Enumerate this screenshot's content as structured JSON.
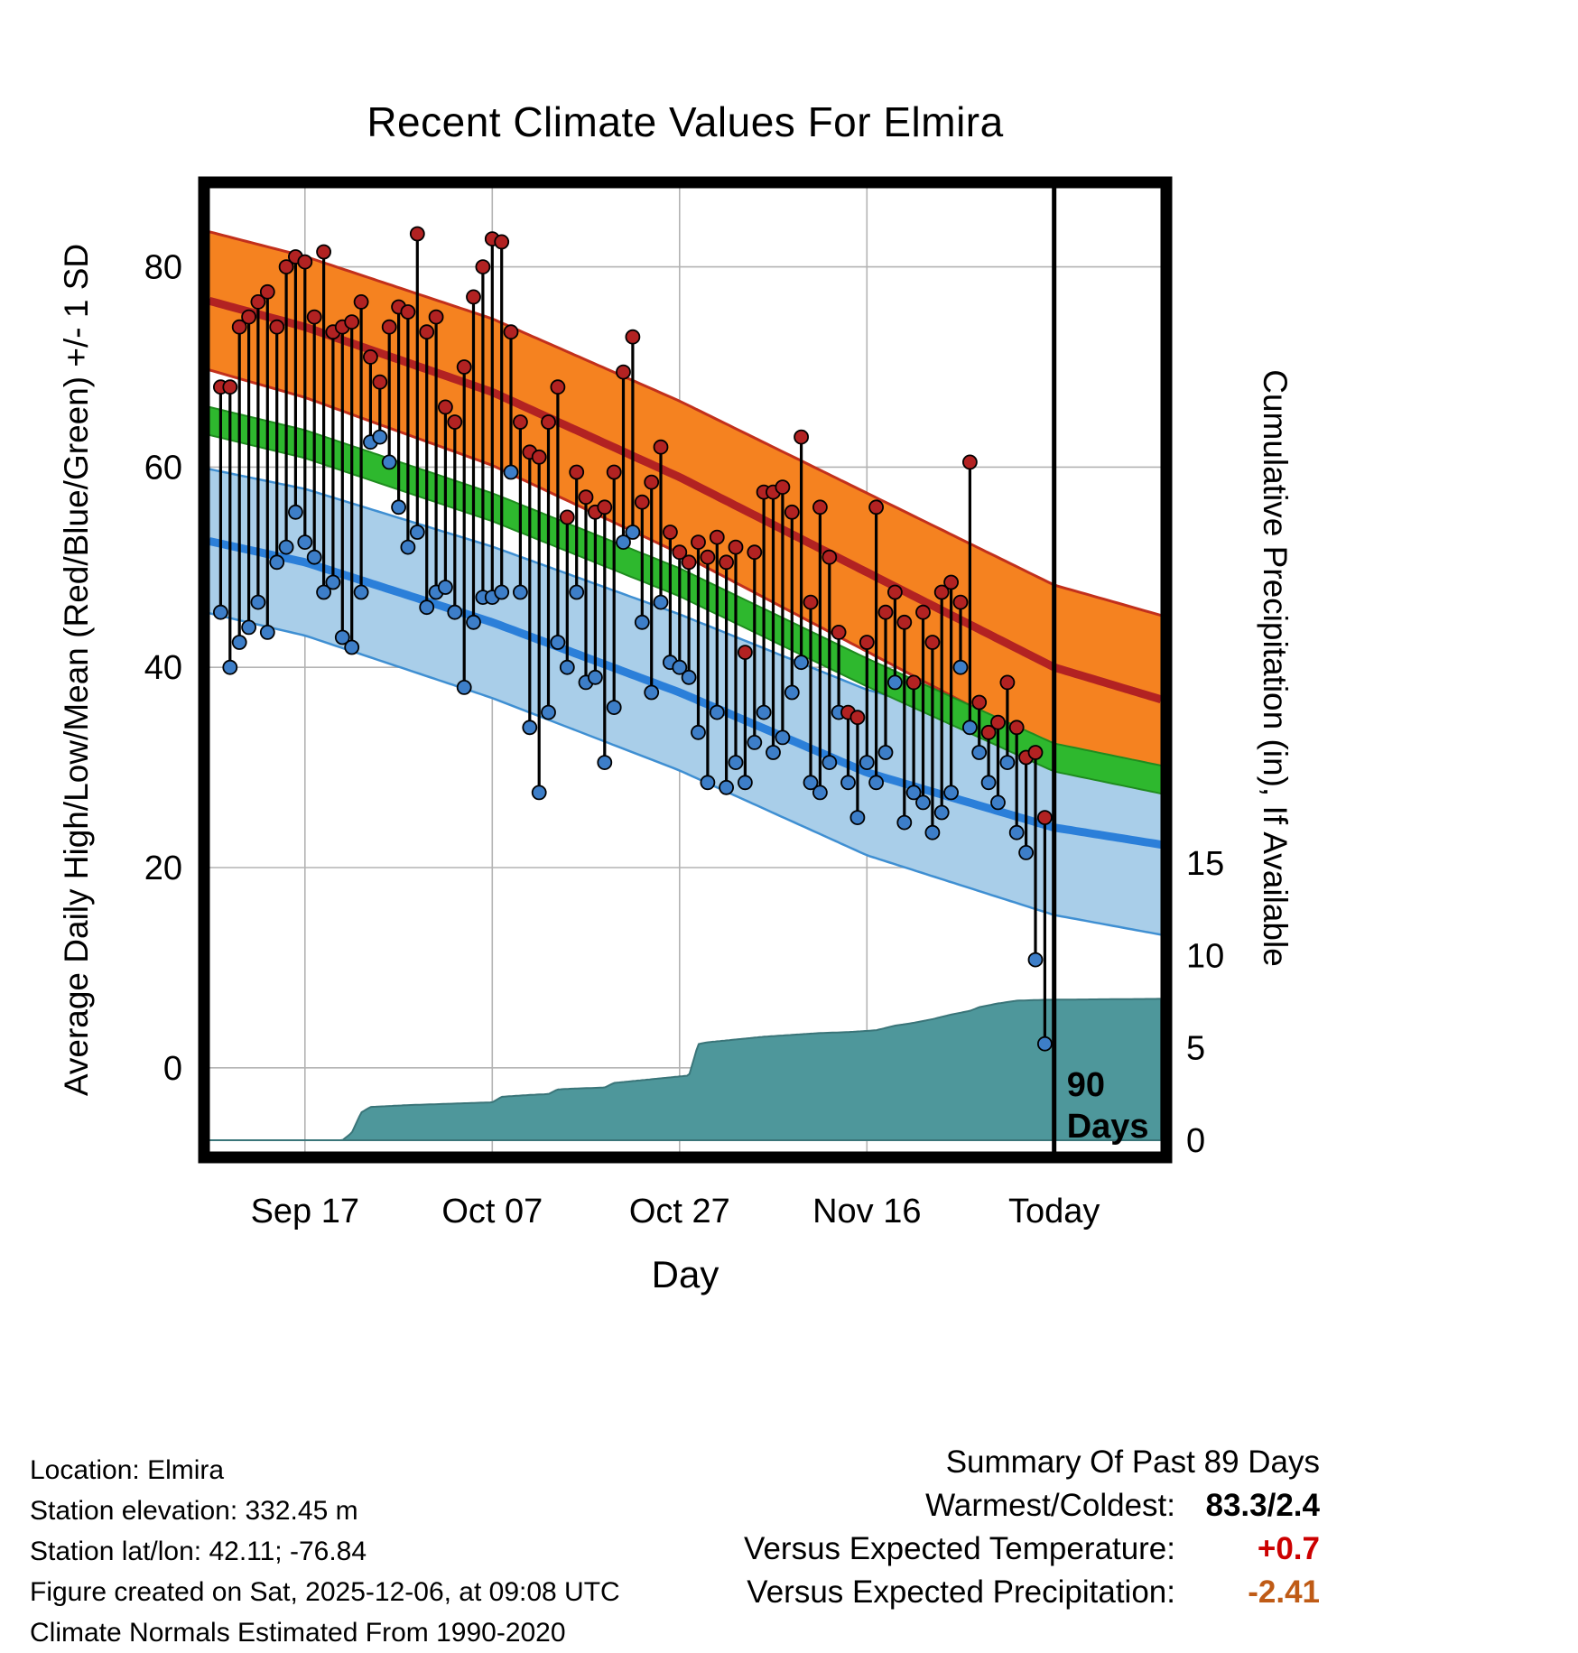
{
  "title": "Recent Climate Values For Elmira",
  "colors": {
    "high_band": "#F58220",
    "high_band_edge": "#C2301C",
    "high_line": "#B22222",
    "mid_band": "#2EB82E",
    "mid_band_edge": "#1F8C1F",
    "low_band": "#A9CEE9",
    "low_band_edge": "#3F8FD2",
    "low_line": "#2B7FD9",
    "high_dot": "#B22222",
    "low_dot": "#3D7EC8",
    "stem": "#000000",
    "precip_fill": "#4E979B",
    "precip_edge": "#3A7579",
    "grid": "#b3b3b3",
    "frame": "#000000",
    "today_line": "#000000"
  },
  "chart_data": {
    "type": "line",
    "subtype": "daily high/low stems with climate normal bands and cumulative precipitation area",
    "title": "Recent Climate Values For Elmira",
    "xlabel": "Day",
    "ylabel_left": "Average Daily High/Low/Mean (Red/Blue/Green) +/- 1 SD",
    "ylabel_right": "Cumulative Precipitation (in), If Available",
    "temp_axis": {
      "ticks": [
        0,
        20,
        40,
        60,
        80
      ],
      "range": [
        -8.4,
        87.9
      ]
    },
    "precip_axis": {
      "ticks": [
        0,
        5,
        10,
        15
      ],
      "range": [
        0,
        15
      ]
    },
    "x_ticks": [
      {
        "day": 9,
        "label": "Sep 17"
      },
      {
        "day": 29,
        "label": "Oct 07"
      },
      {
        "day": 49,
        "label": "Oct 27"
      },
      {
        "day": 69,
        "label": "Nov 16"
      },
      {
        "day": 89,
        "label": "Today"
      }
    ],
    "today_line_day": 89,
    "today_label_lines": [
      "90",
      "Days"
    ],
    "normals": {
      "high_mean_anchors": [
        [
          -1.2,
          76.6
        ],
        [
          9,
          74
        ],
        [
          29,
          67.5
        ],
        [
          49,
          59
        ],
        [
          69,
          49.5
        ],
        [
          89,
          40
        ],
        [
          100.4,
          36.8
        ]
      ],
      "high_sd_anchors": [
        [
          -1.2,
          6.9
        ],
        [
          49,
          7.6
        ],
        [
          100.4,
          8.4
        ]
      ],
      "mid_mean_anchors": [
        [
          -1.2,
          64.6
        ],
        [
          9,
          62.3
        ],
        [
          29,
          56
        ],
        [
          49,
          48.5
        ],
        [
          69,
          39.5
        ],
        [
          89,
          31
        ],
        [
          100.4,
          28.8
        ]
      ],
      "mid_sd_anchors": [
        [
          -1.2,
          1.4
        ],
        [
          100.4,
          1.4
        ]
      ],
      "low_mean_anchors": [
        [
          -1.2,
          52.6
        ],
        [
          9,
          50.5
        ],
        [
          29,
          44.5
        ],
        [
          49,
          37.5
        ],
        [
          69,
          29.5
        ],
        [
          89,
          24
        ],
        [
          100.4,
          22.3
        ]
      ],
      "low_sd_anchors": [
        [
          -1.2,
          7.2
        ],
        [
          49,
          7.8
        ],
        [
          100.4,
          9.0
        ]
      ]
    },
    "daily": {
      "start_day": 0,
      "high": [
        68,
        68,
        74,
        75,
        76.5,
        77.5,
        74,
        80,
        81,
        80.5,
        75,
        81.5,
        73.5,
        74,
        74.5,
        76.5,
        71,
        68.5,
        74,
        76,
        75.5,
        83.3,
        73.5,
        75,
        66,
        64.5,
        70,
        77,
        80,
        82.8,
        82.5,
        73.5,
        64.5,
        61.5,
        61,
        64.5,
        68,
        55,
        59.5,
        57,
        55.5,
        56,
        59.5,
        69.5,
        73,
        56.5,
        58.5,
        62,
        53.5,
        51.5,
        50.5,
        52.5,
        51,
        53,
        50.5,
        52,
        41.5,
        51.5,
        57.5,
        57.5,
        58,
        55.5,
        63,
        46.5,
        56,
        51,
        43.5,
        35.5,
        35,
        42.5,
        56,
        45.5,
        47.5,
        44.5,
        38.5,
        45.5,
        42.5,
        47.5,
        48.5,
        46.5,
        60.5,
        36.5,
        33.5,
        34.5,
        38.5,
        34,
        31,
        31.5,
        25
      ],
      "low": [
        45.5,
        40,
        42.5,
        44,
        46.5,
        43.5,
        50.5,
        52,
        55.5,
        52.5,
        51,
        47.5,
        48.5,
        43,
        42,
        47.5,
        62.5,
        63,
        60.5,
        56,
        52,
        53.5,
        46,
        47.5,
        48,
        45.5,
        38,
        44.5,
        47,
        47,
        47.5,
        59.5,
        47.5,
        34,
        27.5,
        35.5,
        42.5,
        40,
        47.5,
        38.5,
        39,
        30.5,
        36,
        52.5,
        53.5,
        44.5,
        37.5,
        46.5,
        40.5,
        40,
        39,
        33.5,
        28.5,
        35.5,
        28,
        30.5,
        28.5,
        32.5,
        35.5,
        31.5,
        33,
        37.5,
        40.5,
        28.5,
        27.5,
        30.5,
        35.5,
        28.5,
        25,
        30.5,
        28.5,
        31.5,
        38.5,
        24.5,
        27.5,
        26.5,
        23.5,
        25.5,
        27.5,
        40,
        34,
        31.5,
        28.5,
        26.5,
        30.5,
        23.5,
        21.5,
        10.8,
        2.4
      ]
    },
    "precip_cumulative_anchors": [
      [
        -1.2,
        0
      ],
      [
        13,
        0
      ],
      [
        14,
        0.4
      ],
      [
        15,
        1.5
      ],
      [
        16,
        1.8
      ],
      [
        20,
        1.9
      ],
      [
        26,
        2.0
      ],
      [
        29,
        2.05
      ],
      [
        30,
        2.35
      ],
      [
        33,
        2.45
      ],
      [
        35,
        2.5
      ],
      [
        36,
        2.75
      ],
      [
        38,
        2.8
      ],
      [
        41,
        2.85
      ],
      [
        42,
        3.1
      ],
      [
        44,
        3.2
      ],
      [
        46,
        3.3
      ],
      [
        48,
        3.4
      ],
      [
        50,
        3.5
      ],
      [
        51,
        5.2
      ],
      [
        52,
        5.3
      ],
      [
        55,
        5.45
      ],
      [
        58,
        5.6
      ],
      [
        61,
        5.7
      ],
      [
        64,
        5.8
      ],
      [
        67,
        5.85
      ],
      [
        70,
        5.95
      ],
      [
        72,
        6.2
      ],
      [
        74,
        6.35
      ],
      [
        76,
        6.55
      ],
      [
        78,
        6.8
      ],
      [
        80,
        7.0
      ],
      [
        81,
        7.2
      ],
      [
        83,
        7.4
      ],
      [
        85,
        7.55
      ],
      [
        88,
        7.6
      ],
      [
        100.4,
        7.65
      ]
    ]
  },
  "footer": {
    "info_lines": [
      "Location: Elmira",
      "Station elevation: 332.45 m",
      "Station lat/lon: 42.11; -76.84",
      "Figure created on Sat, 2025-12-06, at 09:08 UTC",
      "Climate Normals Estimated From 1990-2020"
    ],
    "summary": {
      "title": "Summary Of Past 89 Days",
      "rows": [
        {
          "label": "Warmest/Coldest:",
          "value": "83.3/2.4",
          "color": "#000000"
        },
        {
          "label": "Versus Expected Temperature:",
          "value": "+0.7",
          "color": "#cc0000"
        },
        {
          "label": "Versus Expected Precipitation:",
          "value": "-2.41",
          "color": "#bf5b16"
        }
      ]
    }
  }
}
